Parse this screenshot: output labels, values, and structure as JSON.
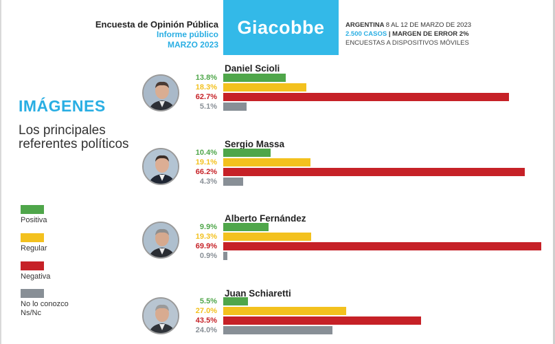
{
  "header": {
    "survey_title": "Encuesta de Opinión Pública",
    "report_label": "Informe público",
    "date_label": "MARZO 2023",
    "brand": "Giacobbe",
    "location": "ARGENTINA",
    "field_dates": "8 AL 12 DE MARZO DE 2023",
    "cases": "2.500 CASOS",
    "separator": "|",
    "margin": "MARGEN DE ERROR 2%",
    "method": "ENCUESTAS A DISPOSITIVOS MÓVILES"
  },
  "section": {
    "title": "IMÁGENES",
    "subtitle": "Los principales referentes políticos"
  },
  "legend": [
    {
      "key": "pos",
      "label": "Positiva"
    },
    {
      "key": "reg",
      "label": "Regular"
    },
    {
      "key": "neg",
      "label": "Negativa"
    },
    {
      "key": "nc",
      "label": "No lo conozco\nNs/Nc"
    }
  ],
  "colors": {
    "positiva": "#4fa64a",
    "regular": "#f3c11e",
    "negativa": "#c62127",
    "no_conoce": "#888f96",
    "accent": "#33b9e8"
  },
  "chart_data": {
    "type": "bar",
    "orientation": "horizontal",
    "unit": "%",
    "xlim": [
      0,
      70
    ],
    "categories": [
      "Daniel Scioli",
      "Sergio Massa",
      "Alberto Fernández",
      "Juan Schiaretti"
    ],
    "series": [
      {
        "name": "Positiva",
        "values": [
          13.8,
          10.4,
          9.9,
          5.5
        ]
      },
      {
        "name": "Regular",
        "values": [
          18.3,
          19.1,
          19.3,
          27.0
        ]
      },
      {
        "name": "Negativa",
        "values": [
          62.7,
          66.2,
          69.9,
          43.5
        ]
      },
      {
        "name": "No lo conozco Ns/Nc",
        "values": [
          5.1,
          4.3,
          0.9,
          24.0
        ]
      }
    ],
    "labels": [
      [
        "13.8%",
        "18.3%",
        "62.7%",
        "5.1%"
      ],
      [
        "10.4%",
        "19.1%",
        "66.2%",
        "4.3%"
      ],
      [
        "9.9%",
        "19.3%",
        "69.9%",
        "0.9%"
      ],
      [
        "5.5%",
        "27.0%",
        "43.5%",
        "24.0%"
      ]
    ]
  }
}
